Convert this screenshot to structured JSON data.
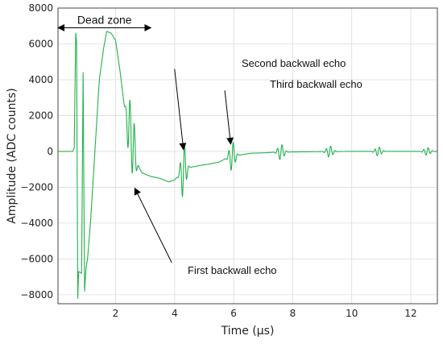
{
  "chart_data": {
    "type": "line",
    "title": "",
    "xlabel": "Time (μs)",
    "ylabel": "Amplitude (ADC counts)",
    "xlim": [
      0.05,
      12.9
    ],
    "ylim": [
      -8500,
      8000
    ],
    "grid": true,
    "x_ticks": [
      2,
      4,
      6,
      8,
      10,
      12
    ],
    "x_tick_labels": [
      "2",
      "4",
      "6",
      "8",
      "10",
      "12"
    ],
    "y_ticks": [
      8000,
      6000,
      4000,
      2000,
      0,
      -2000,
      -4000,
      -6000,
      -8000
    ],
    "y_tick_labels": [
      "8000",
      "6000",
      "4000",
      "2000",
      "0",
      "−2000",
      "−4000",
      "−6000",
      "−8000"
    ],
    "series": [
      {
        "color": "#22b14c",
        "envelope": [
          [
            0.05,
            0
          ],
          [
            0.55,
            0
          ],
          [
            0.6,
            200
          ],
          [
            0.65,
            6600
          ],
          [
            0.68,
            6100
          ],
          [
            0.72,
            -8200
          ],
          [
            0.75,
            -6700
          ],
          [
            0.85,
            -6800
          ],
          [
            0.9,
            4400
          ],
          [
            0.95,
            -7800
          ],
          [
            1.0,
            -6500
          ],
          [
            1.05,
            -6000
          ],
          [
            1.15,
            -4000
          ],
          [
            1.3,
            0
          ],
          [
            1.45,
            4000
          ],
          [
            1.6,
            5800
          ],
          [
            1.7,
            6700
          ],
          [
            1.85,
            6600
          ],
          [
            2.0,
            6200
          ],
          [
            2.15,
            4500
          ],
          [
            2.3,
            2500
          ],
          [
            2.45,
            1300
          ],
          [
            2.55,
            800
          ],
          [
            2.65,
            -200
          ],
          [
            2.75,
            -800
          ],
          [
            2.9,
            -1200
          ],
          [
            3.2,
            -1400
          ],
          [
            3.5,
            -1500
          ],
          [
            3.8,
            -1700
          ],
          [
            4.0,
            -1600
          ],
          [
            4.25,
            -1100
          ],
          [
            4.5,
            -900
          ],
          [
            4.8,
            -800
          ],
          [
            5.2,
            -700
          ],
          [
            5.5,
            -600
          ],
          [
            5.85,
            -300
          ],
          [
            6.2,
            -200
          ],
          [
            6.6,
            -100
          ],
          [
            7.0,
            -80
          ],
          [
            7.5,
            -40
          ],
          [
            8.0,
            -30
          ],
          [
            9.0,
            -10
          ],
          [
            10.0,
            0
          ],
          [
            11.0,
            0
          ],
          [
            12.0,
            0
          ],
          [
            12.9,
            0
          ]
        ],
        "echoes": [
          {
            "t": 2.45,
            "amp": 1500,
            "freq": 6.5,
            "width": 0.09
          },
          {
            "t": 2.6,
            "amp": 1800,
            "freq": 6.5,
            "width": 0.1
          },
          {
            "t": 4.3,
            "amp": 1600,
            "freq": 6.5,
            "width": 0.11
          },
          {
            "t": 5.95,
            "amp": 850,
            "freq": 6.5,
            "width": 0.12
          },
          {
            "t": 7.6,
            "amp": 450,
            "freq": 6.5,
            "width": 0.13
          },
          {
            "t": 9.25,
            "amp": 320,
            "freq": 6.5,
            "width": 0.14
          },
          {
            "t": 10.9,
            "amp": 260,
            "freq": 6.5,
            "width": 0.14
          },
          {
            "t": 12.55,
            "amp": 220,
            "freq": 6.5,
            "width": 0.14
          }
        ]
      }
    ],
    "annotations": [
      {
        "id": "first",
        "text": "First backwall echo",
        "arrow_from": [
          3.9,
          -6200
        ],
        "arrow_to": [
          2.65,
          -2050
        ]
      },
      {
        "id": "second",
        "text": "Second backwall echo",
        "arrow_from": [
          4.0,
          4600
        ],
        "arrow_to": [
          4.3,
          100
        ]
      },
      {
        "id": "third",
        "text": "Third backwall echo",
        "arrow_from": [
          5.7,
          3400
        ],
        "arrow_to": [
          5.9,
          400
        ]
      }
    ],
    "dead_zone": {
      "text": "Dead zone",
      "x_from": 0.05,
      "x_to": 3.2,
      "y": 6900
    }
  }
}
